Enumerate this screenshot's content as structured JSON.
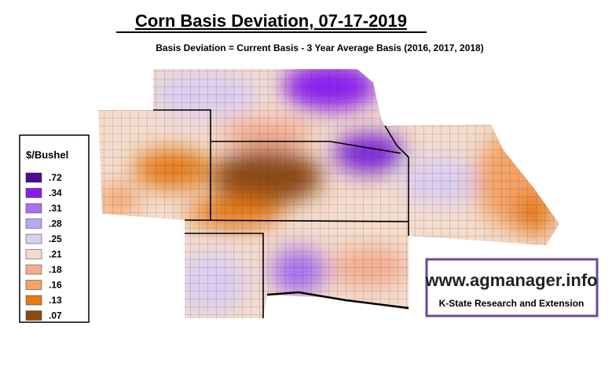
{
  "title": "Corn Basis Deviation, 07-17-2019",
  "subtitle": "Basis Deviation = Current Basis - 3 Year Average Basis (2016, 2017, 2018)",
  "legend": {
    "title": "$/Bushel",
    "items": [
      {
        "label": ".72",
        "color": "#4a0d8f"
      },
      {
        "label": ".34",
        "color": "#8a1cf0"
      },
      {
        "label": ".31",
        "color": "#a872ee"
      },
      {
        "label": ".28",
        "color": "#bca6f0"
      },
      {
        "label": ".25",
        "color": "#dccdf2"
      },
      {
        "label": ".21",
        "color": "#f4dccd"
      },
      {
        "label": ".18",
        "color": "#f4ac92"
      },
      {
        "label": ".16",
        "color": "#f4a466"
      },
      {
        "label": ".13",
        "color": "#e67a12"
      },
      {
        "label": ".07",
        "color": "#8c4a12"
      }
    ]
  },
  "logo": {
    "url": "www.agmanager.info",
    "org": "K-State Research and Extension"
  }
}
